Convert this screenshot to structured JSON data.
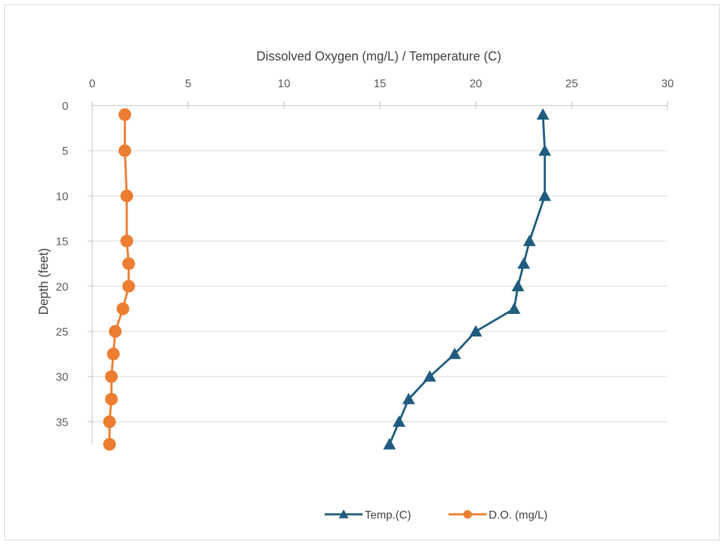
{
  "chart_data": {
    "type": "line",
    "x_axis": {
      "title": "Dissolved Oxygen (mg/L) / Temperature (C)",
      "position": "top",
      "range": [
        0,
        30
      ],
      "ticks": [
        0,
        5,
        10,
        15,
        20,
        25,
        30
      ]
    },
    "y_axis": {
      "title": "Depth (feet)",
      "reversed": true,
      "range": [
        0,
        37.5
      ],
      "ticks": [
        0,
        5,
        10,
        15,
        20,
        25,
        30,
        35
      ]
    },
    "grid": "horizontal major gridlines",
    "legend": {
      "placement": "bottom"
    },
    "series": [
      {
        "name": "Temp.(C)",
        "color": "#1f5c7f",
        "marker": "triangle",
        "points": [
          {
            "x": 23.5,
            "depth": 1
          },
          {
            "x": 23.6,
            "depth": 5
          },
          {
            "x": 23.6,
            "depth": 10
          },
          {
            "x": 22.8,
            "depth": 15
          },
          {
            "x": 22.5,
            "depth": 17.5
          },
          {
            "x": 22.2,
            "depth": 20
          },
          {
            "x": 22.0,
            "depth": 22.5
          },
          {
            "x": 20.0,
            "depth": 25
          },
          {
            "x": 18.9,
            "depth": 27.5
          },
          {
            "x": 17.6,
            "depth": 30
          },
          {
            "x": 16.5,
            "depth": 32.5
          },
          {
            "x": 16.0,
            "depth": 35
          },
          {
            "x": 15.5,
            "depth": 37.5
          }
        ]
      },
      {
        "name": "D.O. (mg/L)",
        "color": "#ed7d31",
        "marker": "circle",
        "points": [
          {
            "x": 1.7,
            "depth": 1
          },
          {
            "x": 1.7,
            "depth": 5
          },
          {
            "x": 1.8,
            "depth": 10
          },
          {
            "x": 1.8,
            "depth": 15
          },
          {
            "x": 1.9,
            "depth": 17.5
          },
          {
            "x": 1.9,
            "depth": 20
          },
          {
            "x": 1.6,
            "depth": 22.5
          },
          {
            "x": 1.2,
            "depth": 25
          },
          {
            "x": 1.1,
            "depth": 27.5
          },
          {
            "x": 1.0,
            "depth": 30
          },
          {
            "x": 1.0,
            "depth": 32.5
          },
          {
            "x": 0.9,
            "depth": 35
          },
          {
            "x": 0.9,
            "depth": 37.5
          }
        ]
      }
    ]
  }
}
